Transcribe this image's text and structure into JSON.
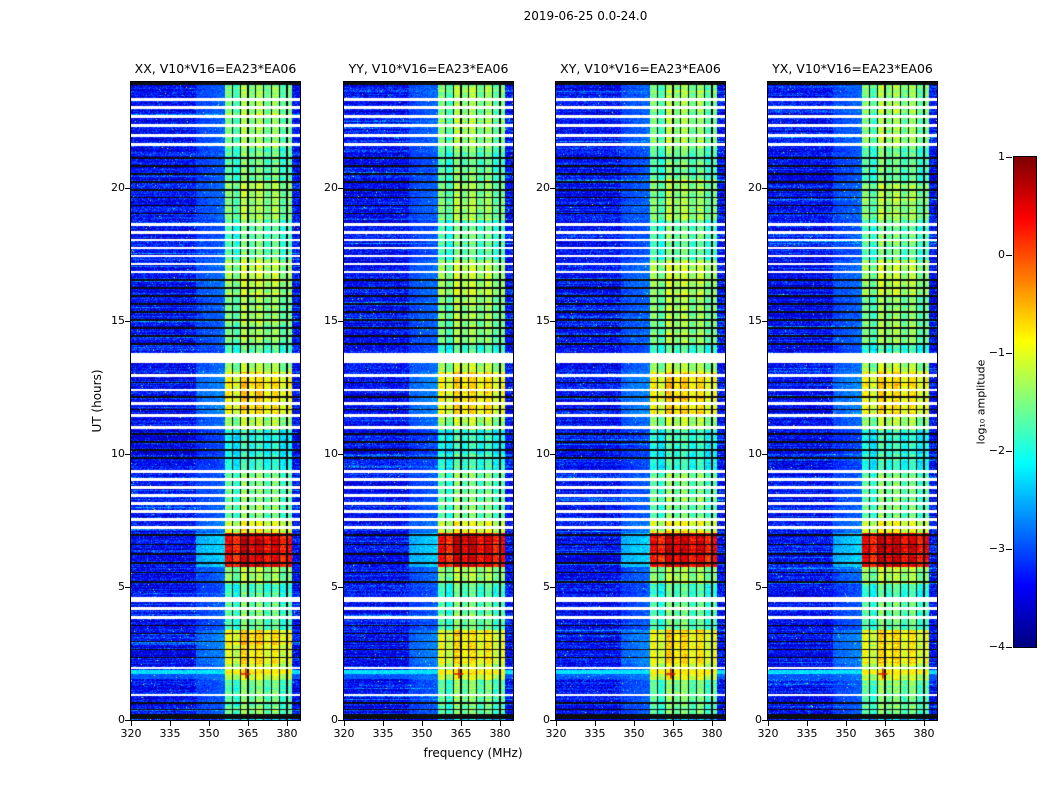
{
  "chart_data": {
    "type": "heatmap",
    "title": "2019-06-25 0.0-24.0",
    "panels": [
      {
        "id": "XX",
        "label": "XX, V10*V16=EA23*EA06"
      },
      {
        "id": "YY",
        "label": "YY, V10*V16=EA23*EA06"
      },
      {
        "id": "XY",
        "label": "XY, V10*V16=EA23*EA06"
      },
      {
        "id": "YX",
        "label": "YX, V10*V16=EA23*EA06"
      }
    ],
    "x": {
      "label": "frequency (MHz)",
      "min": 320,
      "max": 385,
      "ticks": [
        320,
        335,
        350,
        365,
        380
      ]
    },
    "y": {
      "label": "UT (hours)",
      "min": 0,
      "max": 24,
      "ticks": [
        0,
        5,
        10,
        15,
        20
      ]
    },
    "colorbar": {
      "label": "log₁₀ amplitude",
      "min": -4,
      "max": 1,
      "colormap": "jet",
      "ticks": [
        {
          "v": 1,
          "label": "1"
        },
        {
          "v": 0,
          "label": "0"
        },
        {
          "v": -1,
          "label": "−1"
        },
        {
          "v": -2,
          "label": "−2"
        },
        {
          "v": -3,
          "label": "−3"
        },
        {
          "v": -4,
          "label": "−4"
        }
      ]
    },
    "emission_band": {
      "f_start": 356,
      "f_end": 382,
      "sub_bands": [
        [
          356,
          359,
          0.5
        ],
        [
          359,
          362,
          0.28
        ],
        [
          362,
          365,
          0.72
        ],
        [
          365,
          368,
          0.52
        ],
        [
          368,
          371,
          0.68
        ],
        [
          371,
          374,
          0.42
        ],
        [
          374,
          377,
          0.62
        ],
        [
          377,
          380,
          0.32
        ],
        [
          380,
          382,
          0.48
        ]
      ],
      "dark_channels_mhz": [
        359,
        362,
        365,
        368,
        371,
        374,
        377,
        380
      ]
    },
    "activity_segments": [
      [
        0,
        0.2,
        -2.5
      ],
      [
        0.2,
        1.5,
        -1.7
      ],
      [
        1.5,
        2.1,
        -1.2
      ],
      [
        2.1,
        3.4,
        -0.95
      ],
      [
        3.4,
        4.5,
        -1.75
      ],
      [
        4.5,
        5.1,
        -1.9
      ],
      [
        5.1,
        5.75,
        -1.45
      ],
      [
        5.75,
        7.05,
        0.35
      ],
      [
        7.05,
        7.5,
        -1.15
      ],
      [
        7.5,
        9.4,
        -1.7
      ],
      [
        9.4,
        10.9,
        -2.05
      ],
      [
        10.9,
        11.5,
        -1.4
      ],
      [
        11.5,
        13.1,
        -0.9
      ],
      [
        13.1,
        13.5,
        -1.4
      ],
      [
        13.5,
        14.2,
        -1.9
      ],
      [
        14.2,
        16.0,
        -1.55
      ],
      [
        16.0,
        17.3,
        -1.35
      ],
      [
        17.3,
        18.8,
        -1.8
      ],
      [
        18.8,
        20.3,
        -1.5
      ],
      [
        20.3,
        21.5,
        -1.75
      ],
      [
        21.5,
        24,
        -1.55
      ]
    ],
    "white_gap_rows_ut": [
      [
        23.35,
        0.055
      ],
      [
        23.05,
        0.055
      ],
      [
        22.7,
        0.055
      ],
      [
        22.35,
        0.055
      ],
      [
        22.0,
        0.055
      ],
      [
        21.65,
        0.055
      ],
      [
        18.65,
        0.05
      ],
      [
        18.35,
        0.05
      ],
      [
        18.05,
        0.05
      ],
      [
        17.75,
        0.05
      ],
      [
        17.45,
        0.05
      ],
      [
        17.15,
        0.05
      ],
      [
        16.85,
        0.05
      ],
      [
        13.62,
        0.2
      ],
      [
        12.95,
        0.05
      ],
      [
        12.42,
        0.05
      ],
      [
        11.9,
        0.05
      ],
      [
        11.45,
        0.05
      ],
      [
        11.0,
        0.05
      ],
      [
        9.35,
        0.05
      ],
      [
        9.05,
        0.05
      ],
      [
        8.75,
        0.05
      ],
      [
        8.45,
        0.05
      ],
      [
        8.15,
        0.05
      ],
      [
        7.85,
        0.05
      ],
      [
        7.55,
        0.05
      ],
      [
        7.25,
        0.05
      ],
      [
        4.52,
        0.09
      ],
      [
        4.18,
        0.055
      ],
      [
        3.85,
        0.055
      ],
      [
        1.95,
        0.04
      ],
      [
        0.95,
        0.045
      ]
    ],
    "black_rows_ut": [
      [
        23.95,
        0.07
      ],
      [
        21.15,
        0.032
      ],
      [
        20.85,
        0.032
      ],
      [
        20.55,
        0.032
      ],
      [
        20.25,
        0.032
      ],
      [
        19.95,
        0.032
      ],
      [
        19.65,
        0.032
      ],
      [
        19.35,
        0.032
      ],
      [
        19.05,
        0.032
      ],
      [
        16.55,
        0.032
      ],
      [
        16.25,
        0.032
      ],
      [
        15.95,
        0.032
      ],
      [
        15.65,
        0.032
      ],
      [
        15.35,
        0.032
      ],
      [
        15.05,
        0.032
      ],
      [
        14.75,
        0.032
      ],
      [
        14.45,
        0.032
      ],
      [
        14.15,
        0.032
      ],
      [
        12.7,
        0.028
      ],
      [
        12.15,
        0.028
      ],
      [
        11.68,
        0.028
      ],
      [
        10.75,
        0.032
      ],
      [
        10.45,
        0.032
      ],
      [
        10.15,
        0.032
      ],
      [
        9.85,
        0.032
      ],
      [
        6.95,
        0.03
      ],
      [
        6.6,
        0.03
      ],
      [
        6.25,
        0.03
      ],
      [
        5.9,
        0.03
      ],
      [
        5.55,
        0.03
      ],
      [
        5.2,
        0.03
      ],
      [
        3.55,
        0.03
      ],
      [
        3.25,
        0.03
      ],
      [
        2.95,
        0.03
      ],
      [
        2.65,
        0.03
      ],
      [
        2.35,
        0.03
      ],
      [
        0.65,
        0.03
      ],
      [
        0.4,
        0.03
      ],
      [
        0.12,
        0.09
      ]
    ],
    "full_band_burst": {
      "t_ut": 1.8,
      "marker": {
        "symbol": "+",
        "f_mhz": 364,
        "t_ut": 1.75,
        "color": "#cc2200"
      }
    },
    "background_level": -3.35,
    "noise_sigma": 0.3
  }
}
